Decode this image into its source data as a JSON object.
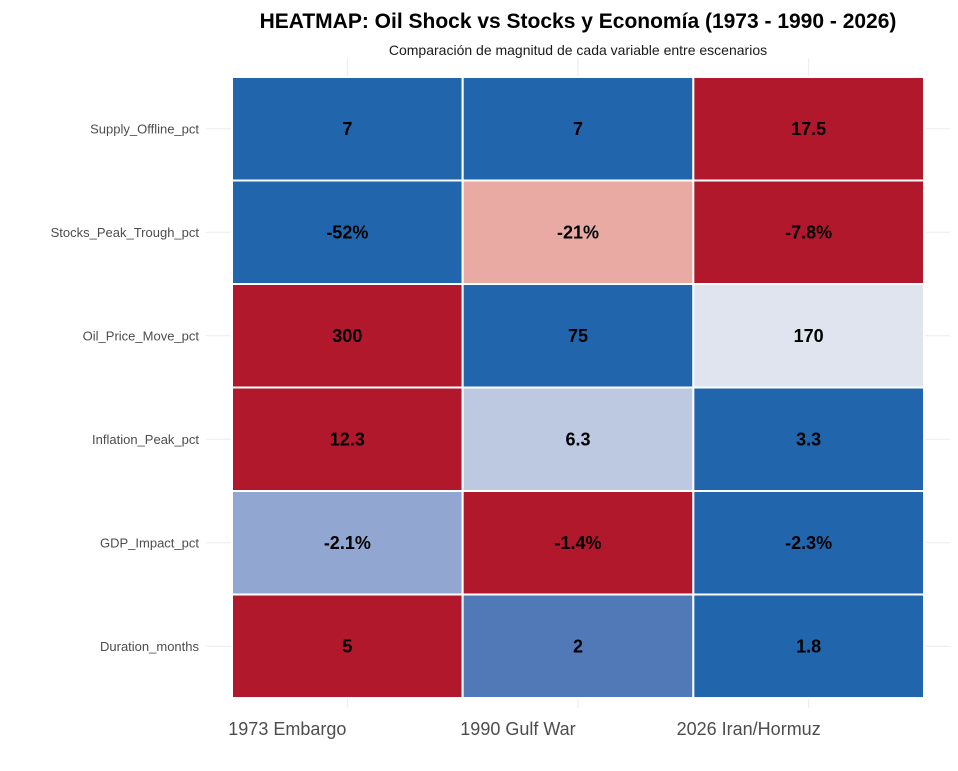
{
  "chart_data": {
    "type": "heatmap",
    "title": "HEATMAP: Oil Shock vs Stocks y Economía (1973 - 1990 - 2026)",
    "subtitle": "Comparación de magnitud de cada variable entre escenarios",
    "x_categories": [
      "1973 Embargo",
      "1990 Gulf War",
      "2026 Iran/Hormuz"
    ],
    "y_categories": [
      "Supply_Offline_pct",
      "Stocks_Peak_Trough_pct",
      "Oil_Price_Move_pct",
      "Inflation_Peak_pct",
      "GDP_Impact_pct",
      "Duration_months"
    ],
    "cells": [
      [
        "7",
        "7",
        "17.5"
      ],
      [
        "-52%",
        "-21%",
        "-7.8%"
      ],
      [
        "300",
        "75",
        "170"
      ],
      [
        "12.3",
        "6.3",
        "3.3"
      ],
      [
        "-2.1%",
        "-1.4%",
        "-2.3%"
      ],
      [
        "5",
        "2",
        "1.8"
      ]
    ],
    "colors": [
      [
        "#2166ac",
        "#2166ac",
        "#b2182b"
      ],
      [
        "#2166ac",
        "#e8aaa3",
        "#b2182b"
      ],
      [
        "#b2182b",
        "#2166ac",
        "#dfe4ef"
      ],
      [
        "#b2182b",
        "#bdc8e1",
        "#2166ac"
      ],
      [
        "#91a7d1",
        "#b2182b",
        "#2166ac"
      ],
      [
        "#b2182b",
        "#5179b7",
        "#2166ac"
      ]
    ],
    "grid": true,
    "legend": "none"
  }
}
